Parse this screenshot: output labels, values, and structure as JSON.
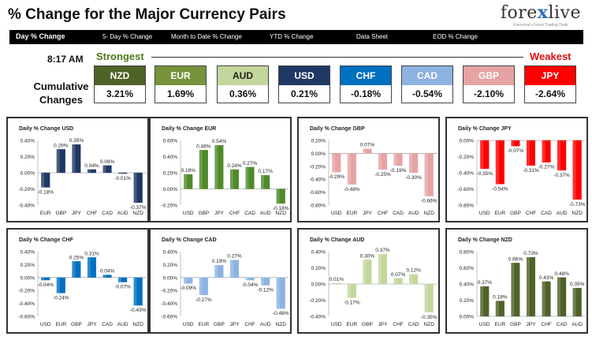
{
  "header": {
    "title": "% Change for the Major Currency Pairs"
  },
  "logo": {
    "brand_a": "fore",
    "brand_x": "x",
    "brand_b": "live",
    "tagline": "Everyone's Forex Trading Desk"
  },
  "nav": [
    {
      "label": "Day % Change",
      "active": true
    },
    {
      "label": "5- Day % Change",
      "active": false
    },
    {
      "label": "Month to Date % Change",
      "active": false
    },
    {
      "label": "YTD % Change",
      "active": false
    },
    {
      "label": "Data Sheet",
      "active": false
    },
    {
      "label": "EOD % Change",
      "active": false
    }
  ],
  "summary": {
    "time": "8:17 AM",
    "strongest_label": "Strongest",
    "weakest_label": "Weakest",
    "cumulative_label_1": "Cumulative",
    "cumulative_label_2": "Changes",
    "currencies": [
      {
        "code": "NZD",
        "value": "3.21%",
        "color": "#4f6228"
      },
      {
        "code": "EUR",
        "value": "1.69%",
        "color": "#77933c"
      },
      {
        "code": "AUD",
        "value": "0.36%",
        "color": "#c3d69b"
      },
      {
        "code": "USD",
        "value": "0.21%",
        "color": "#1f3864"
      },
      {
        "code": "CHF",
        "value": "-0.18%",
        "color": "#0070c0"
      },
      {
        "code": "CAD",
        "value": "-0.54%",
        "color": "#8db3e2"
      },
      {
        "code": "GBP",
        "value": "-2.10%",
        "color": "#e6a3a3"
      },
      {
        "code": "JPY",
        "value": "-2.64%",
        "color": "#ff0000"
      }
    ]
  },
  "chart_data": [
    {
      "type": "bar",
      "title": "Daily % Change USD",
      "categories": [
        "EUR",
        "GBP",
        "JPY",
        "CHF",
        "CAD",
        "AUD",
        "NZD"
      ],
      "values": [
        -0.18,
        0.29,
        0.35,
        0.04,
        0.09,
        -0.01,
        -0.37
      ],
      "data_labels": [
        "-0.18%",
        "0.29%",
        "0.35%",
        "0.04%",
        "0.09%",
        "-0.01%",
        "-0.37%"
      ],
      "ylim": [
        -0.4,
        0.4
      ],
      "ticks": [
        "0.40%",
        "0.20%",
        "0.00%",
        "-0.20%",
        "-0.40%"
      ],
      "color": "#1f3864"
    },
    {
      "type": "bar",
      "title": "Daily % Change EUR",
      "categories": [
        "USD",
        "GBP",
        "JPY",
        "CHF",
        "CAD",
        "AUD",
        "NZD"
      ],
      "values": [
        0.18,
        0.48,
        0.54,
        0.24,
        0.27,
        0.17,
        -0.18
      ],
      "data_labels": [
        "0.18%",
        "0.48%",
        "0.54%",
        "0.24%",
        "0.27%",
        "0.17%",
        "-0.18%"
      ],
      "ylim": [
        -0.2,
        0.6
      ],
      "ticks": [
        "0.60%",
        "0.40%",
        "0.20%",
        "0.00%",
        "-0.20%"
      ],
      "color": "#4f8a2a"
    },
    {
      "type": "bar",
      "title": "Daily % Change GBP",
      "categories": [
        "USD",
        "EUR",
        "JPY",
        "CHF",
        "CAD",
        "AUD",
        "NZD"
      ],
      "values": [
        -0.29,
        -0.48,
        0.07,
        -0.25,
        -0.19,
        -0.3,
        -0.66
      ],
      "data_labels": [
        "-0.29%",
        "-0.48%",
        "0.07%",
        "-0.25%",
        "-0.19%",
        "-0.30%",
        "-0.66%"
      ],
      "ylim": [
        -0.8,
        0.2
      ],
      "ticks": [
        "0.20%",
        "0.00%",
        "-0.20%",
        "-0.40%",
        "-0.60%",
        "-0.80%"
      ],
      "color": "#e6a3a3"
    },
    {
      "type": "bar",
      "title": "Daily % Change JPY",
      "categories": [
        "USD",
        "EUR",
        "GBP",
        "CHF",
        "CAD",
        "AUD",
        "NZD"
      ],
      "values": [
        -0.35,
        -0.54,
        -0.07,
        -0.31,
        -0.27,
        -0.37,
        -0.73
      ],
      "data_labels": [
        "-0.35%",
        "-0.54%",
        "-0.07%",
        "-0.31%",
        "-0.27%",
        "-0.37%",
        "-0.73%"
      ],
      "ylim": [
        -0.8,
        0.0
      ],
      "ticks": [
        "0.00%",
        "-0.20%",
        "-0.40%",
        "-0.60%",
        "-0.80%"
      ],
      "color": "#ff0000"
    },
    {
      "type": "bar",
      "title": "Daily % Change CHF",
      "categories": [
        "USD",
        "EUR",
        "GBP",
        "JPY",
        "CAD",
        "AUD",
        "NZD"
      ],
      "values": [
        -0.04,
        -0.24,
        0.25,
        0.31,
        0.04,
        -0.07,
        -0.43
      ],
      "data_labels": [
        "-0.04%",
        "-0.24%",
        "0.25%",
        "0.31%",
        "0.04%",
        "-0.07%",
        "-0.43%"
      ],
      "ylim": [
        -0.6,
        0.4
      ],
      "ticks": [
        "0.40%",
        "0.20%",
        "0.00%",
        "-0.20%",
        "-0.40%",
        "-0.60%"
      ],
      "color": "#0070c0"
    },
    {
      "type": "bar",
      "title": "Daily % Change CAD",
      "categories": [
        "USD",
        "EUR",
        "GBP",
        "JPY",
        "CHF",
        "AUD",
        "NZD"
      ],
      "values": [
        -0.09,
        -0.27,
        0.19,
        0.27,
        -0.04,
        -0.12,
        -0.48
      ],
      "data_labels": [
        "-0.09%",
        "-0.27%",
        "0.19%",
        "0.27%",
        "-0.04%",
        "-0.12%",
        "-0.48%"
      ],
      "ylim": [
        -0.6,
        0.4
      ],
      "ticks": [
        "0.40%",
        "0.20%",
        "0.00%",
        "-0.20%",
        "-0.40%",
        "-0.60%"
      ],
      "color": "#8db3e2"
    },
    {
      "type": "bar",
      "title": "Daily % Change AUD",
      "categories": [
        "USD",
        "EUR",
        "GBP",
        "JPY",
        "CHF",
        "CAD",
        "NZD"
      ],
      "values": [
        0.01,
        -0.17,
        0.3,
        0.37,
        0.07,
        0.12,
        -0.35
      ],
      "data_labels": [
        "0.01%",
        "-0.17%",
        "0.30%",
        "0.37%",
        "0.07%",
        "0.12%",
        "-0.35%"
      ],
      "ylim": [
        -0.4,
        0.4
      ],
      "ticks": [
        "0.40%",
        "0.20%",
        "0.00%",
        "-0.20%",
        "-0.40%"
      ],
      "color": "#c3d69b"
    },
    {
      "type": "bar",
      "title": "Daily % Change NZD",
      "categories": [
        "USD",
        "EUR",
        "GBP",
        "JPY",
        "CHF",
        "CAD",
        "AUD"
      ],
      "values": [
        0.37,
        0.19,
        0.66,
        0.73,
        0.43,
        0.48,
        0.35
      ],
      "data_labels": [
        "0.37%",
        "0.19%",
        "0.66%",
        "0.73%",
        "0.43%",
        "0.48%",
        "0.35%"
      ],
      "ylim": [
        0.0,
        0.8
      ],
      "ticks": [
        "0.80%",
        "0.60%",
        "0.40%",
        "0.20%",
        "0.00%"
      ],
      "color": "#4f6228"
    }
  ]
}
